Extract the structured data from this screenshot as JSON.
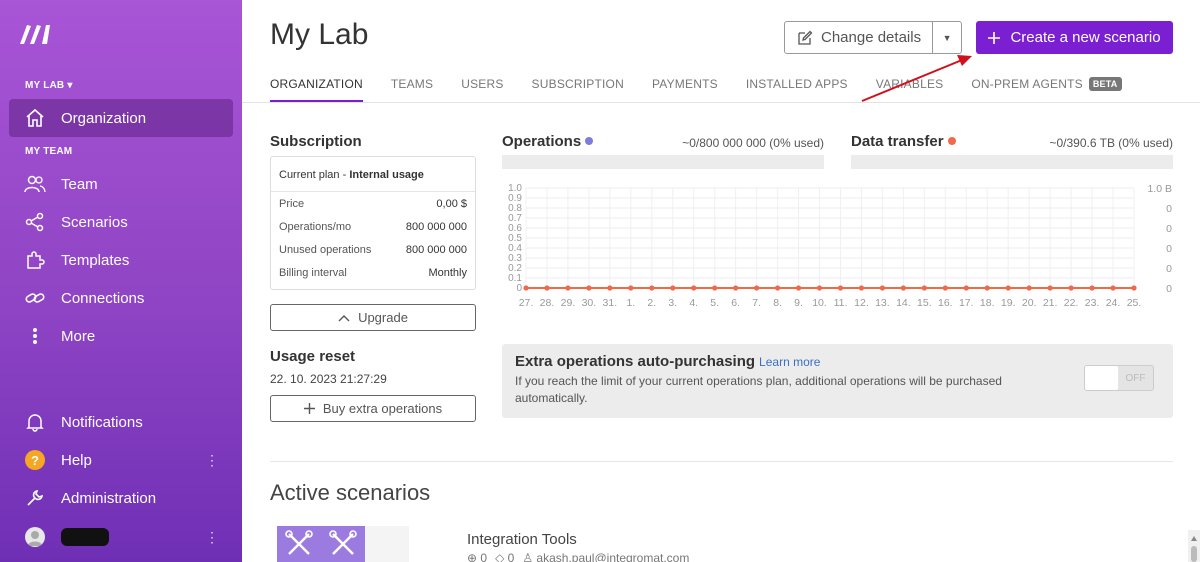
{
  "sidebar": {
    "section_my_lab": "MY LAB ▾",
    "section_my_team": "MY TEAM",
    "organization": "Organization",
    "team": "Team",
    "scenarios": "Scenarios",
    "templates": "Templates",
    "connections": "Connections",
    "more": "More",
    "notifications": "Notifications",
    "help": "Help",
    "administration": "Administration",
    "help_badge": "?"
  },
  "header": {
    "title": "My Lab",
    "change_details": "Change details",
    "create_scenario": "Create a new scenario"
  },
  "tabs": [
    "ORGANIZATION",
    "TEAMS",
    "USERS",
    "SUBSCRIPTION",
    "PAYMENTS",
    "INSTALLED APPS",
    "VARIABLES",
    "ON-PREM AGENTS"
  ],
  "beta_badge": "BETA",
  "subscription": {
    "title": "Subscription",
    "plan_prefix": "Current plan - ",
    "plan_name": "Internal usage",
    "rows": [
      {
        "label": "Price",
        "value": "0,00 $"
      },
      {
        "label": "Operations/mo",
        "value": "800 000 000"
      },
      {
        "label": "Unused operations",
        "value": "800 000 000"
      },
      {
        "label": "Billing interval",
        "value": "Monthly"
      }
    ],
    "upgrade": "Upgrade",
    "usage_reset_title": "Usage reset",
    "usage_reset_date": "22. 10. 2023 21:27:29",
    "buy_extra": "Buy extra operations"
  },
  "operations": {
    "title": "Operations",
    "used": "~0/800 000 000 (0% used)",
    "used_fraction": 0,
    "color": "#7c7cdb"
  },
  "data_transfer": {
    "title": "Data transfer",
    "used": "~0/390.6 TB (0% used)",
    "used_fraction": 0,
    "color": "#f06a4a"
  },
  "chart_data": {
    "type": "line",
    "x": [
      "27.",
      "28.",
      "29.",
      "30.",
      "31.",
      "1.",
      "2.",
      "3.",
      "4.",
      "5.",
      "6.",
      "7.",
      "8.",
      "9.",
      "10.",
      "11.",
      "12.",
      "13.",
      "14.",
      "15.",
      "16.",
      "17.",
      "18.",
      "19.",
      "20.",
      "21.",
      "22.",
      "23.",
      "24.",
      "25."
    ],
    "left_ticks": [
      "1.0",
      "0.9",
      "0.8",
      "0.7",
      "0.6",
      "0.5",
      "0.4",
      "0.3",
      "0.2",
      "0.1",
      "0"
    ],
    "right_ticks": [
      "1.0 B",
      "0",
      "0",
      "0",
      "0",
      "0"
    ],
    "ylim": [
      0,
      1
    ],
    "series": [
      {
        "values": [
          0,
          0,
          0,
          0,
          0,
          0,
          0,
          0,
          0,
          0,
          0,
          0,
          0,
          0,
          0,
          0,
          0,
          0,
          0,
          0,
          0,
          0,
          0,
          0,
          0,
          0,
          0,
          0,
          0,
          0
        ],
        "color": "#f06a4a"
      }
    ],
    "grid": true
  },
  "extra_ops": {
    "title": "Extra operations auto-purchasing",
    "learn_more": "Learn more",
    "description": "If you reach the limit of your current operations plan, additional operations will be purchased automatically.",
    "toggle_label": "OFF"
  },
  "active_scenarios": {
    "title": "Active scenarios",
    "items": [
      {
        "name": "Integration Tools",
        "count_a": "0",
        "count_b": "0",
        "owner": "akash.paul@integromat.com"
      }
    ]
  }
}
